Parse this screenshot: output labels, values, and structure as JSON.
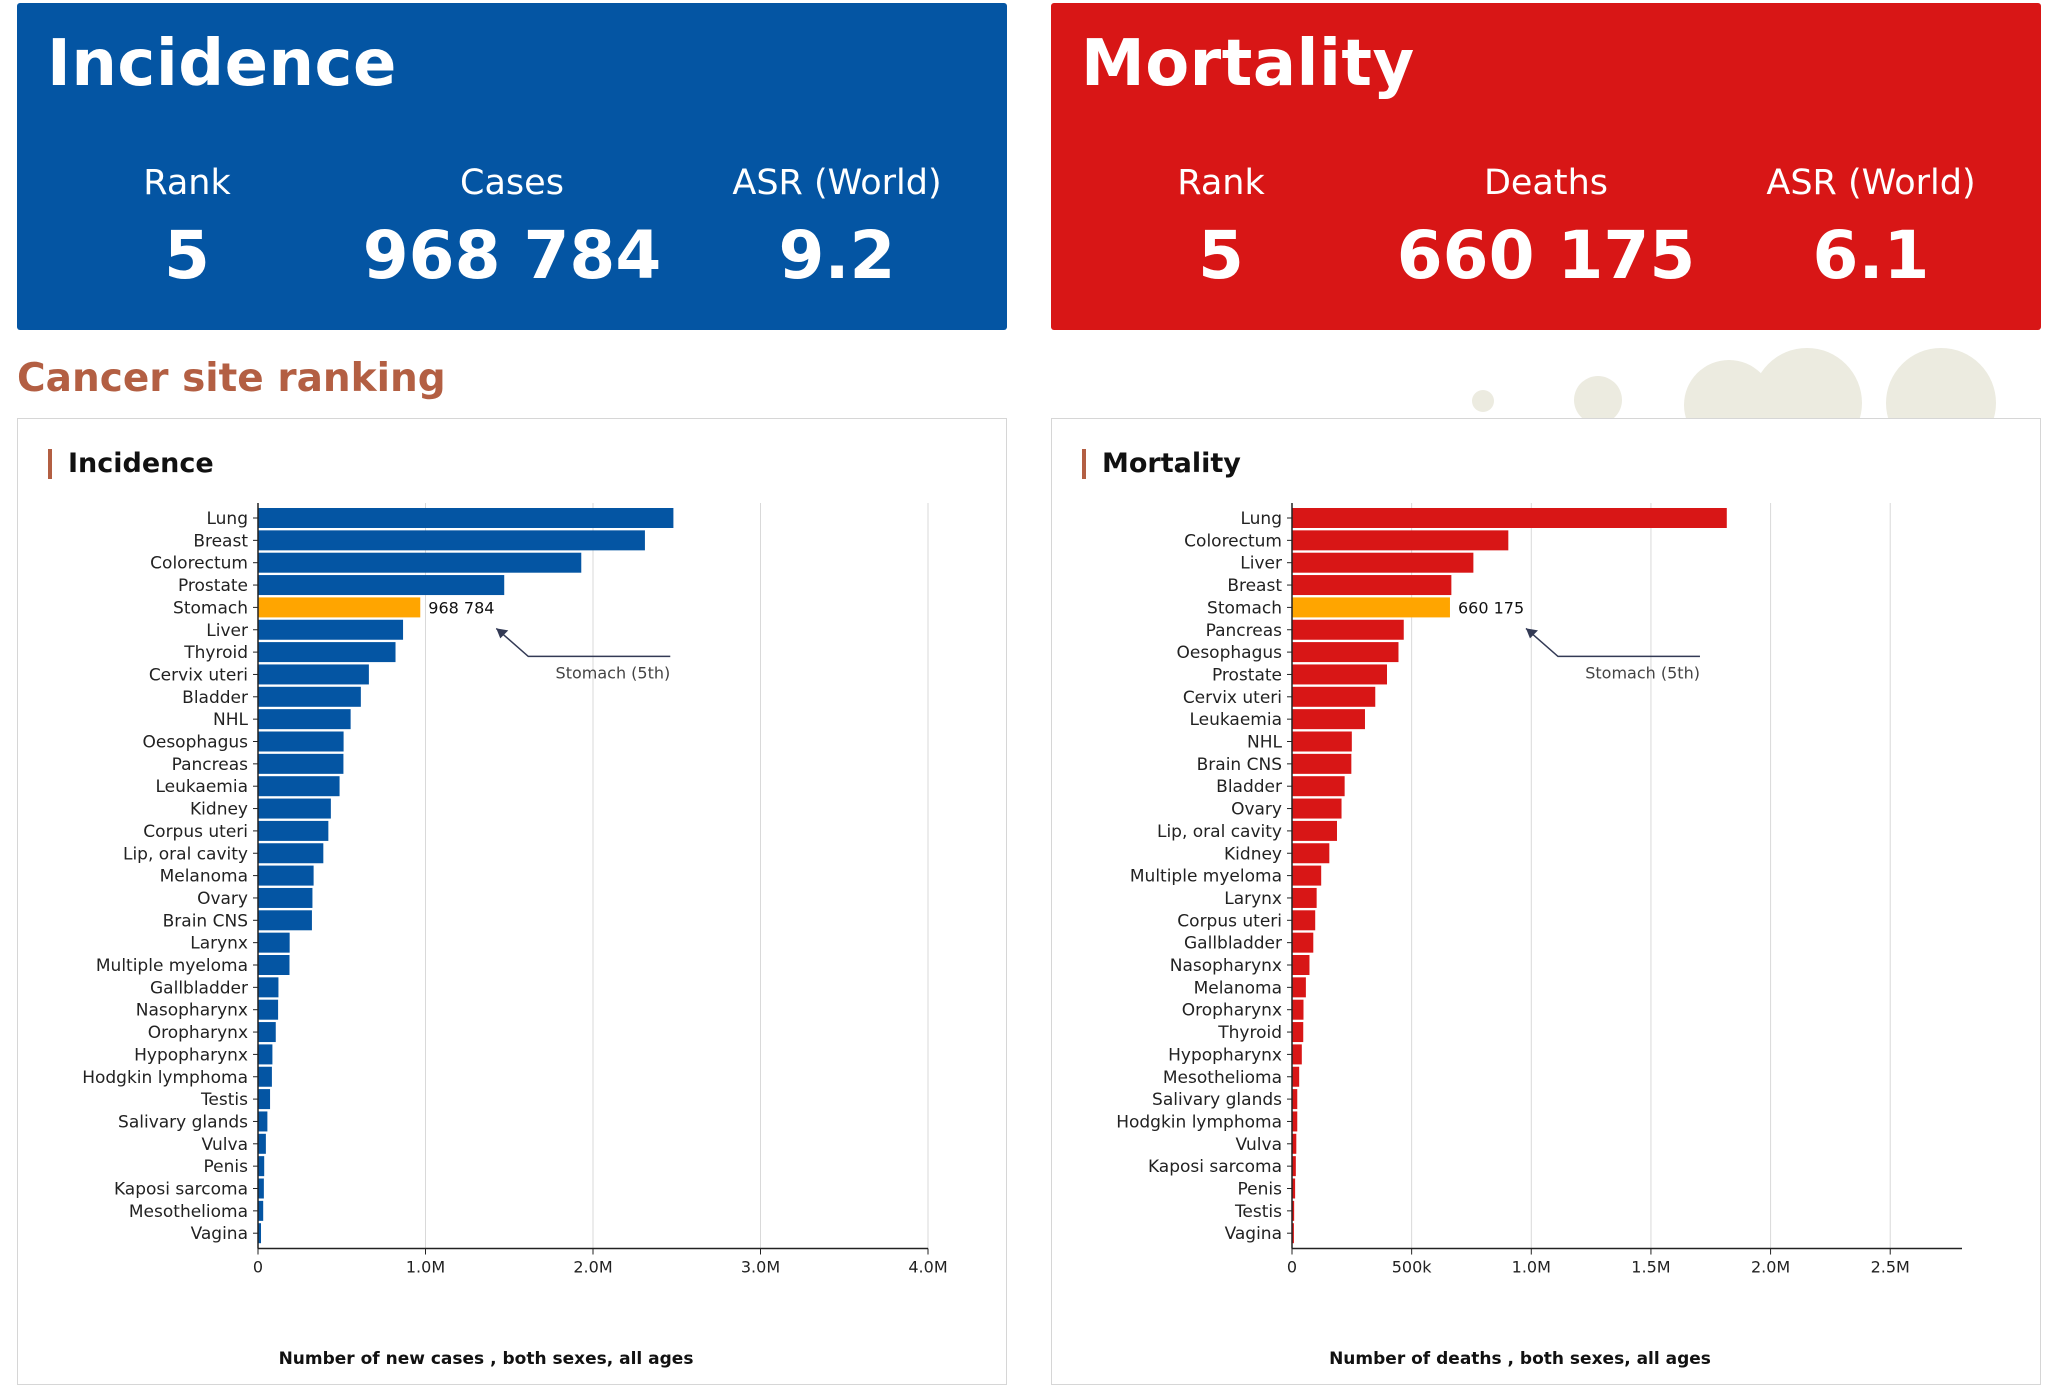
{
  "colors": {
    "incidence": "#0455a3",
    "mortality": "#d81616",
    "highlight": "#ffa500",
    "section": "#b35f43"
  },
  "incidence_card": {
    "title": "Incidence",
    "rank_label": "Rank",
    "rank_value": "5",
    "count_label": "Cases",
    "count_value": "968 784",
    "asr_label": "ASR (World)",
    "asr_value": "9.2"
  },
  "mortality_card": {
    "title": "Mortality",
    "rank_label": "Rank",
    "rank_value": "5",
    "count_label": "Deaths",
    "count_value": "660 175",
    "asr_label": "ASR (World)",
    "asr_value": "6.1"
  },
  "section_title": "Cancer site ranking",
  "chart_data": [
    {
      "type": "bar",
      "orientation": "horizontal",
      "title": "Incidence",
      "xlabel": "Number of new cases , both sexes, all ages",
      "xlim": [
        0,
        4000000
      ],
      "xticks": [
        0,
        1000000,
        2000000,
        3000000,
        4000000
      ],
      "xtick_labels": [
        "0",
        "1.0M",
        "2.0M",
        "3.0M",
        "4.0M"
      ],
      "grid": true,
      "highlight_index": 4,
      "highlight_value_label": "968 784",
      "annotation": "Stomach (5th)",
      "categories": [
        "Lung",
        "Breast",
        "Colorectum",
        "Prostate",
        "Stomach",
        "Liver",
        "Thyroid",
        "Cervix uteri",
        "Bladder",
        "NHL",
        "Oesophagus",
        "Pancreas",
        "Leukaemia",
        "Kidney",
        "Corpus uteri",
        "Lip, oral cavity",
        "Melanoma",
        "Ovary",
        "Brain CNS",
        "Larynx",
        "Multiple myeloma",
        "Gallbladder",
        "Nasopharynx",
        "Oropharynx",
        "Hypopharynx",
        "Hodgkin lymphoma",
        "Testis",
        "Salivary glands",
        "Vulva",
        "Penis",
        "Kaposi sarcoma",
        "Mesothelioma",
        "Vagina"
      ],
      "values": [
        2480000,
        2310000,
        1930000,
        1470000,
        968784,
        866000,
        821000,
        662000,
        614000,
        553000,
        511000,
        510000,
        487000,
        435000,
        420000,
        390000,
        332000,
        325000,
        322000,
        189000,
        188000,
        122000,
        120000,
        106000,
        86000,
        83000,
        72000,
        56000,
        47000,
        37000,
        35000,
        31000,
        18000
      ]
    },
    {
      "type": "bar",
      "orientation": "horizontal",
      "title": "Mortality",
      "xlabel": "Number of deaths , both sexes, all ages",
      "xlim": [
        0,
        2800000
      ],
      "xticks": [
        0,
        500000,
        1000000,
        1500000,
        2000000,
        2500000
      ],
      "xtick_labels": [
        "0",
        "500k",
        "1.0M",
        "1.5M",
        "2.0M",
        "2.5M"
      ],
      "grid": true,
      "highlight_index": 4,
      "highlight_value_label": "660 175",
      "annotation": "Stomach (5th)",
      "categories": [
        "Lung",
        "Colorectum",
        "Liver",
        "Breast",
        "Stomach",
        "Pancreas",
        "Oesophagus",
        "Prostate",
        "Cervix uteri",
        "Leukaemia",
        "NHL",
        "Brain CNS",
        "Bladder",
        "Ovary",
        "Lip, oral cavity",
        "Kidney",
        "Multiple myeloma",
        "Larynx",
        "Corpus uteri",
        "Gallbladder",
        "Nasopharynx",
        "Melanoma",
        "Oropharynx",
        "Thyroid",
        "Hypopharynx",
        "Mesothelioma",
        "Salivary glands",
        "Hodgkin lymphoma",
        "Vulva",
        "Kaposi sarcoma",
        "Penis",
        "Testis",
        "Vagina"
      ],
      "values": [
        1817000,
        904000,
        758000,
        666000,
        660175,
        467000,
        445000,
        397000,
        348000,
        305000,
        250000,
        248000,
        220000,
        207000,
        188000,
        156000,
        122000,
        103000,
        97000,
        89000,
        73000,
        58000,
        48000,
        47000,
        41000,
        30000,
        22000,
        22000,
        18000,
        16000,
        13000,
        9000,
        8000
      ]
    }
  ]
}
